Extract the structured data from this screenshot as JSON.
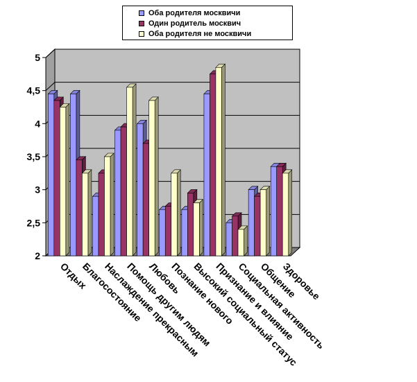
{
  "chart_data": {
    "type": "bar",
    "categories": [
      "Отдых",
      "Благосостояние",
      "Наслаждение прекрасным",
      "Помощь другим людям",
      "Любовь",
      "Познание нового",
      "Высокий социальный статус",
      "Признание и влияние",
      "Социальная активность",
      "Общение",
      "Здоровье"
    ],
    "series": [
      {
        "name": "Оба родителя москвичи",
        "color": "#9999ff",
        "values": [
          4.45,
          4.45,
          2.9,
          3.9,
          4.0,
          2.7,
          2.7,
          4.45,
          2.5,
          3.0,
          3.35
        ]
      },
      {
        "name": "Один родитель москвич",
        "color": "#993366",
        "values": [
          4.35,
          3.45,
          3.25,
          3.95,
          3.7,
          2.75,
          2.95,
          4.75,
          2.6,
          2.9,
          3.35
        ]
      },
      {
        "name": "Оба родителя не москвичи",
        "color": "#ffffcc",
        "values": [
          4.25,
          3.25,
          3.5,
          4.55,
          4.35,
          3.25,
          2.8,
          4.85,
          2.4,
          3.0,
          3.25
        ]
      }
    ],
    "yticks": [
      "2",
      "2,5",
      "3",
      "3,5",
      "4",
      "4,5",
      "5"
    ],
    "ylim": [
      2,
      5
    ],
    "grid": true,
    "legend_position": "top-center",
    "wall_color": "#c0c0c0"
  }
}
